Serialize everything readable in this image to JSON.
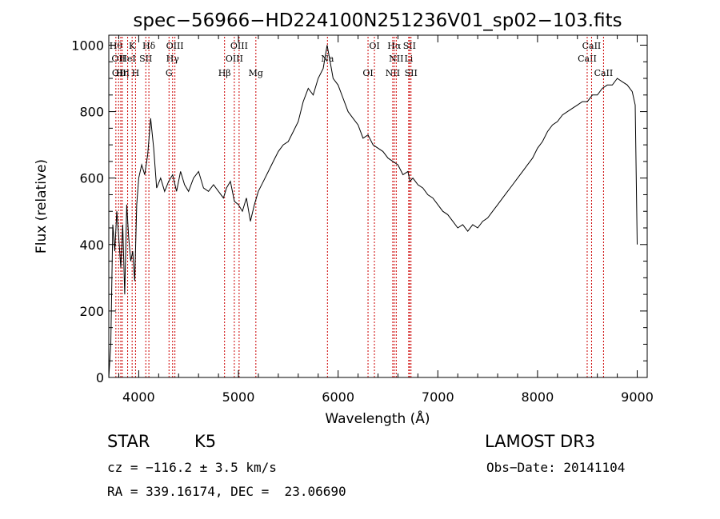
{
  "chart_data": {
    "type": "line",
    "title": "spec−56966−HD224100N251236V01_sp02−103.fits",
    "xlabel": "Wavelength (Å)",
    "ylabel": "Flux (relative)",
    "xlim": [
      3700,
      9100
    ],
    "ylim": [
      0,
      1030
    ],
    "x_ticks": [
      4000,
      5000,
      6000,
      7000,
      8000,
      9000
    ],
    "y_ticks": [
      0,
      200,
      400,
      600,
      800,
      1000
    ],
    "grid": false,
    "series": [
      {
        "name": "flux",
        "x": [
          3700,
          3720,
          3740,
          3760,
          3780,
          3800,
          3820,
          3840,
          3860,
          3880,
          3900,
          3920,
          3940,
          3960,
          3980,
          4000,
          4030,
          4060,
          4090,
          4120,
          4150,
          4180,
          4220,
          4260,
          4300,
          4340,
          4380,
          4420,
          4460,
          4500,
          4550,
          4600,
          4650,
          4700,
          4750,
          4800,
          4850,
          4880,
          4920,
          4960,
          5000,
          5040,
          5080,
          5120,
          5160,
          5200,
          5250,
          5300,
          5350,
          5400,
          5450,
          5500,
          5550,
          5600,
          5650,
          5700,
          5750,
          5800,
          5850,
          5890,
          5920,
          5950,
          6000,
          6050,
          6100,
          6150,
          6200,
          6250,
          6300,
          6350,
          6400,
          6450,
          6500,
          6550,
          6600,
          6650,
          6700,
          6720,
          6750,
          6800,
          6850,
          6900,
          6950,
          7000,
          7050,
          7100,
          7150,
          7200,
          7250,
          7300,
          7350,
          7400,
          7450,
          7500,
          7550,
          7600,
          7650,
          7700,
          7750,
          7800,
          7850,
          7900,
          7950,
          8000,
          8050,
          8100,
          8150,
          8200,
          8250,
          8300,
          8350,
          8400,
          8450,
          8500,
          8550,
          8600,
          8650,
          8700,
          8750,
          8800,
          8850,
          8900,
          8950,
          8980,
          9000
        ],
        "y": [
          0,
          100,
          460,
          380,
          500,
          420,
          330,
          460,
          250,
          520,
          420,
          350,
          380,
          290,
          520,
          600,
          640,
          610,
          670,
          780,
          690,
          570,
          600,
          560,
          590,
          610,
          560,
          620,
          580,
          560,
          600,
          620,
          570,
          560,
          580,
          560,
          540,
          570,
          590,
          530,
          520,
          500,
          540,
          470,
          520,
          560,
          590,
          620,
          650,
          680,
          700,
          710,
          740,
          770,
          830,
          870,
          850,
          900,
          930,
          1000,
          950,
          900,
          880,
          840,
          800,
          780,
          760,
          720,
          730,
          700,
          690,
          680,
          660,
          650,
          640,
          610,
          620,
          590,
          600,
          580,
          570,
          550,
          540,
          520,
          500,
          490,
          470,
          450,
          460,
          440,
          460,
          450,
          470,
          480,
          500,
          520,
          540,
          560,
          580,
          600,
          620,
          640,
          660,
          690,
          710,
          740,
          760,
          770,
          790,
          800,
          810,
          820,
          830,
          830,
          850,
          850,
          870,
          880,
          880,
          900,
          890,
          880,
          860,
          820,
          400
        ]
      }
    ],
    "line_markers": [
      {
        "wl": 3771,
        "label": "Hθ",
        "row": 1
      },
      {
        "wl": 3798,
        "label": "OII",
        "row": 2
      },
      {
        "wl": 3820,
        "label": "OIII",
        "row": 3
      },
      {
        "wl": 3835,
        "label": "Hη",
        "row": 3
      },
      {
        "wl": 3889,
        "label": "HeI",
        "row": 2
      },
      {
        "wl": 3934,
        "label": "K",
        "row": 1
      },
      {
        "wl": 3968,
        "label": "H",
        "row": 3
      },
      {
        "wl": 4071,
        "label": "SII",
        "row": 2
      },
      {
        "wl": 4102,
        "label": "Hδ",
        "row": 1
      },
      {
        "wl": 4304,
        "label": "G",
        "row": 3
      },
      {
        "wl": 4340,
        "label": "Hγ",
        "row": 2
      },
      {
        "wl": 4363,
        "label": "OIII",
        "row": 1
      },
      {
        "wl": 4861,
        "label": "Hβ",
        "row": 3
      },
      {
        "wl": 4959,
        "label": "OIII",
        "row": 2
      },
      {
        "wl": 5007,
        "label": "OIII",
        "row": 1
      },
      {
        "wl": 5175,
        "label": "Mg",
        "row": 3
      },
      {
        "wl": 5893,
        "label": "Na",
        "row": 2
      },
      {
        "wl": 6300,
        "label": "OI",
        "row": 3
      },
      {
        "wl": 6364,
        "label": "OI",
        "row": 1
      },
      {
        "wl": 6548,
        "label": "NII",
        "row": 3
      },
      {
        "wl": 6563,
        "label": "Hα",
        "row": 1
      },
      {
        "wl": 6583,
        "label": "NII",
        "row": 2
      },
      {
        "wl": 6708,
        "label": "Li",
        "row": 2
      },
      {
        "wl": 6716,
        "label": "SII",
        "row": 1
      },
      {
        "wl": 6731,
        "label": "SII",
        "row": 3
      },
      {
        "wl": 8498,
        "label": "CaII",
        "row": 2
      },
      {
        "wl": 8542,
        "label": "CaII",
        "row": 1
      },
      {
        "wl": 8662,
        "label": "CaII",
        "row": 3
      }
    ]
  },
  "info": {
    "object_type": "STAR",
    "subclass": "K5",
    "survey": "LAMOST DR3",
    "redshift": "cz = −116.2 ± 3.5 km/s",
    "obs_date": "Obs−Date: 20141104",
    "coords": "RA = 339.16174, DEC =  23.06690"
  },
  "colors": {
    "spectrum": "#000000",
    "marker_line": "#cc0000",
    "axis": "#000000",
    "background": "#ffffff"
  }
}
